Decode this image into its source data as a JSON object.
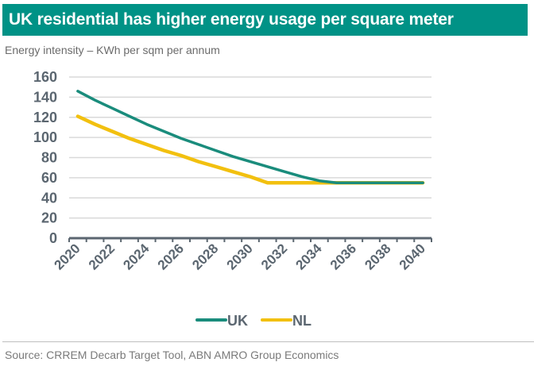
{
  "header": {
    "title": "UK residential has higher energy usage per square meter",
    "subtitle": "Energy intensity – KWh per sqm per annum"
  },
  "footer": {
    "source": "Source: CRREM Decarb Target Tool, ABN AMRO Group Economics"
  },
  "colors": {
    "title_bar": "#009286",
    "uk": "#1a8c7c",
    "nl": "#f2c00f",
    "axis": "#5b6670",
    "grid": "#d9d9d9"
  },
  "chart_data": {
    "type": "line",
    "title": "UK residential has higher energy usage per square meter",
    "subtitle": "Energy intensity – KWh per sqm per annum",
    "xlabel": "",
    "ylabel": "",
    "x": [
      2020,
      2021,
      2022,
      2023,
      2024,
      2025,
      2026,
      2027,
      2028,
      2029,
      2030,
      2031,
      2032,
      2033,
      2034,
      2035,
      2036,
      2037,
      2038,
      2039,
      2040
    ],
    "x_tick_labels": [
      "2020",
      "2022",
      "2024",
      "2026",
      "2028",
      "2030",
      "2032",
      "2034",
      "2036",
      "2038",
      "2040"
    ],
    "y_ticks": [
      0,
      20,
      40,
      60,
      80,
      100,
      120,
      140,
      160
    ],
    "ylim": [
      0,
      160
    ],
    "grid": true,
    "legend_position": "bottom",
    "series": [
      {
        "name": "UK",
        "color": "#1a8c7c",
        "values": [
          146,
          137,
          129,
          121,
          113,
          106,
          99,
          93,
          87,
          81,
          76,
          71,
          66,
          61,
          57,
          55,
          55,
          55,
          55,
          55,
          55
        ]
      },
      {
        "name": "NL",
        "color": "#f2c00f",
        "values": [
          121,
          113,
          106,
          99,
          93,
          87,
          82,
          76,
          71,
          66,
          61,
          55,
          55,
          55,
          55,
          55,
          55,
          55,
          55,
          55,
          55
        ]
      }
    ]
  }
}
